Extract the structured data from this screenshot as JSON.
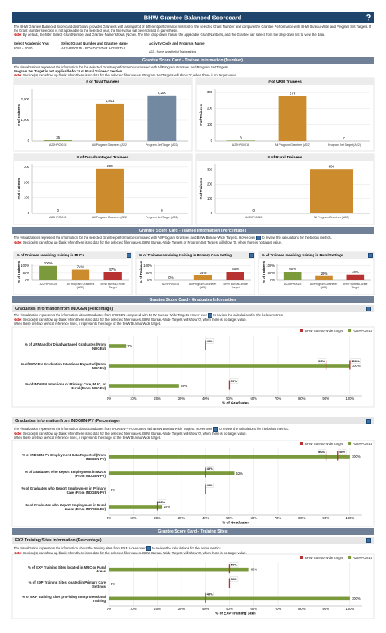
{
  "header": {
    "title": "BHW Grantee Balanced Scorecard",
    "help": "?"
  },
  "intro": {
    "text": "The BHW Grantee Balanced Scorecard dashboard provides Grantees with a snapshot of different performance metrics for the selected Grant Number and compare the Grantee Performance with BHW Bureau-Wide and Program Set Targets. If the Grant Number selection is not applicable to the selected year, the filter value will be enclosed in parenthesis.",
    "note_label": "Note:",
    "note": "By default, the filter 'Select Grant Number and Grantee Name' shows (None). The filter drop-down has all the applicable Grant Numbers, and the Grantee can select from the drop-down list to view the data."
  },
  "filters": [
    {
      "label": "Select Academic Year",
      "value": "2019 - 2020"
    },
    {
      "label": "Select Grant Number and Grantee Name",
      "value": "A22HP00015 - ROAD CATHE HOSPITAL"
    },
    {
      "label": "Activity Code and Program Name",
      "value": "A22 - Nurse Anesthetist Traineeships"
    }
  ],
  "bands": [
    "Grantee Score Card - Trainee Information (Number)",
    "Grantee Score Card - Trainee Information (Percentage)",
    "Grantee Score Card - Graduates Information",
    "Grantee Score Card - Training Sites"
  ],
  "subheadings": [
    "Graduates Information from INDGEN (Percentage)",
    "Graduates Information from INDGEN-PY (Percentage)",
    "EXP Training Sites Information (Percentage)"
  ],
  "descriptions": [
    {
      "text": "The visualizations represent the information for the selected Grantee performance compared with All Program Grantees and Program Set Targets.",
      "extra": "Program Set Target is not applicable for '# of Rural Trainees' Section.",
      "note_label": "Note:",
      "note": "Section(s) can show up blank when there is no data for the selected filter values. Program Set Targets will show '0', when there is no target value."
    },
    {
      "text": "The visualizations represent the information for the selected Grantee performance compared with All Program Grantees and BHW Bureau-Wide Targets. Hover over",
      "hover_after": "to review the calculations for the below metrics.",
      "note_label": "Note:",
      "note": "Section(s) can show up blank when there is no data for the selected filter values. BHW Bureau-Wide Targets or Program Set Targets will show '0', when there is no target value."
    },
    {
      "text": "The visualization represents the information about Graduates from INDGEN compared with BHW Bureau-Wide Targets. Hover over",
      "hover_after": "to review the calculations for the below metrics.",
      "note_label": "Note:",
      "note": "Section(s) can show up blank when there is no data for the selected filter values. BHW Bureau-Wide Targets will show '0', when there is no target value.",
      "range_note": "When there are two vertical reference lines, it represents the range of the BHW Bureau-Wide target."
    },
    {
      "text": "The visualization represents the information about Graduates from INDGEN-PY compared with BHW Bureau-Wide Targets. Hover over",
      "hover_after": "to review the calculations for the below metrics.",
      "note_label": "Note:",
      "note": "Section(s) can show up blank when there is no data for the selected filter values. BHW Bureau-Wide Targets will show '0', when there is no target value.",
      "range_note": "When there are two vertical reference lines, it represents the range of the BHW Bureau-Wide target."
    },
    {
      "text": "The visualization represents the information about the training sites from EXP. Hover over",
      "hover_after": "to review the calculations for the below metrics.",
      "note_label": "Note:",
      "note": "Section(s) can show up blank when there is no data for the selected filter values. BHW Bureau-Wide Targets will show '0', when there is no target value."
    }
  ],
  "chart_data": [
    {
      "type": "bar",
      "title": "# of Total Trainees",
      "y_label": "# of Trainees",
      "categories": [
        "A22HP00015",
        "All Program Grantees (A22)",
        "Program Set Target (A22)"
      ],
      "values": [
        35,
        1811,
        2200
      ],
      "value_labels": [
        "35",
        "1,811",
        "2,200"
      ],
      "colors": [
        "#7a9a3c",
        "#cc8b2c",
        "#7389a1"
      ],
      "ylim": [
        0,
        2500
      ],
      "yticks": [
        0,
        {
          "value": 1000,
          "label": "1,000"
        },
        {
          "value": 2000,
          "label": "2,000"
        }
      ]
    },
    {
      "type": "bar",
      "title": "# of URM Trainees",
      "y_label": "# of Trainees",
      "categories": [
        "A22HP00015",
        "All Program Grantees (A22)",
        "Program Set Target (A22)"
      ],
      "values": [
        3,
        279,
        0
      ],
      "colors": [
        "#7a9a3c",
        "#cc8b2c",
        "#7389a1"
      ],
      "ylim": [
        0,
        320
      ],
      "yticks": [
        0,
        100,
        200,
        300
      ]
    },
    {
      "type": "bar",
      "title": "# of Disadvantaged Trainees",
      "y_label": "# of Trainees",
      "categories": [
        "A22HP00015",
        "All Program Grantees (A22)",
        "Program Set Target (A22)"
      ],
      "values": [
        0,
        290,
        0
      ],
      "colors": [
        "#7a9a3c",
        "#cc8b2c",
        "#7389a1"
      ],
      "ylim": [
        0,
        320
      ],
      "yticks": [
        0,
        100,
        200,
        300
      ]
    },
    {
      "type": "bar",
      "title": "# of Rural Trainees",
      "y_label": "# of Trainees",
      "categories": [
        "A22HP00015",
        "All Program Grantees (A22)"
      ],
      "values": [
        0,
        306
      ],
      "colors": [
        "#7a9a3c",
        "#cc8b2c"
      ],
      "ylim": [
        0,
        340
      ],
      "yticks": [
        0,
        100,
        200,
        300
      ]
    },
    {
      "type": "bar",
      "title": "% of Trainees receiving training in MUCs",
      "y_label": "% of Trainees",
      "info": true,
      "categories": [
        "A22HP00015",
        "All Program Grantees (A22)",
        "BHW Bureau-Wide Target"
      ],
      "values": [
        100,
        74,
        57
      ],
      "value_labels": [
        "100%",
        "74%",
        "57%"
      ],
      "colors": [
        "#7a9a3c",
        "#cc8b2c",
        "#b83232"
      ],
      "ylim": [
        0,
        110
      ],
      "yticks": [
        {
          "value": 0,
          "label": "0%"
        },
        {
          "value": 50,
          "label": "50%"
        },
        {
          "value": 100,
          "label": "100%"
        }
      ]
    },
    {
      "type": "bar",
      "title": "% of Trainees receiving training in Primary Care Setting",
      "y_label": "% of Trainees",
      "info": true,
      "categories": [
        "A22HP00015",
        "All Program Grantees (A22)",
        "BHW Bureau-Wide Target"
      ],
      "values": [
        0,
        34,
        60
      ],
      "value_labels": [
        "0%",
        "34%",
        "60%"
      ],
      "colors": [
        "#7a9a3c",
        "#cc8b2c",
        "#b83232"
      ],
      "ylim": [
        0,
        110
      ],
      "yticks": [
        {
          "value": 0,
          "label": "0%"
        },
        {
          "value": 50,
          "label": "50%"
        },
        {
          "value": 100,
          "label": "100%"
        }
      ]
    },
    {
      "type": "bar",
      "title": "% of Trainees receiving training in Rural Settings",
      "y_label": "% of Trainees",
      "info": true,
      "categories": [
        "A22HP00015",
        "All Program Grantees (A22)",
        "BHW Bureau-Wide Target"
      ],
      "values": [
        60,
        29,
        40
      ],
      "value_labels": [
        "60%",
        "29%",
        "40%"
      ],
      "colors": [
        "#7a9a3c",
        "#cc8b2c",
        "#b83232"
      ],
      "ylim": [
        0,
        110
      ],
      "yticks": [
        {
          "value": 0,
          "label": "0%"
        },
        {
          "value": 50,
          "label": "50%"
        },
        {
          "value": 100,
          "label": "100%"
        }
      ]
    },
    {
      "type": "hbar",
      "x_label": "% of Graduates",
      "categories": [
        "% of URM and/or Disadvantaged Graduates (From INDGEN)",
        "% of INDGEN Graduation Intentions Reported (From INDGEN)",
        "% of INDGEN Intentions of Primary Care, MUC, or Rural (From INDGEN)"
      ],
      "series": [
        {
          "name": "BHW Bureau-Wide Target",
          "color": "#b83232",
          "values": [
            [
              40
            ],
            [
              90,
              100
            ],
            [
              50
            ]
          ],
          "value_labels": [
            [
              "40%"
            ],
            [
              "90%",
              "100%"
            ],
            [
              "50%"
            ]
          ]
        },
        {
          "name": "A22HP00015",
          "color": "#7a9a3c",
          "values": [
            7,
            100,
            29
          ],
          "value_labels": [
            "7%",
            "100%",
            "29%"
          ]
        }
      ],
      "xlim": [
        0,
        105
      ],
      "xticks": [
        {
          "value": 0,
          "label": "0%"
        },
        {
          "value": 10,
          "label": "10%"
        },
        {
          "value": 20,
          "label": "20%"
        },
        {
          "value": 30,
          "label": "30%"
        },
        {
          "value": 40,
          "label": "40%"
        },
        {
          "value": 50,
          "label": "50%"
        },
        {
          "value": 60,
          "label": "60%"
        },
        {
          "value": 70,
          "label": "70%"
        },
        {
          "value": 80,
          "label": "80%"
        },
        {
          "value": 90,
          "label": "90%"
        },
        {
          "value": 100,
          "label": "100%"
        }
      ]
    },
    {
      "type": "hbar",
      "x_label": "% of Graduates",
      "categories": [
        "% of INDGEN-PY Employment Data Reported (From INDGEN-PY)",
        "% of Graduates who Report Employment in MUCs (From INDGEN-PY)",
        "% of Graduates who Report Employment in Primary Care (From INDGEN-PY)",
        "% of Graduates who Report Employment in Rural Areas (From INDGEN-PY)"
      ],
      "series": [
        {
          "name": "BHW Bureau-Wide Target",
          "color": "#b83232",
          "values": [
            [
              90,
              95
            ],
            [
              40
            ],
            [
              40
            ],
            [
              20
            ]
          ],
          "value_labels": [
            [
              "90%",
              "95%"
            ],
            [
              "40%"
            ],
            [
              "40%"
            ],
            [
              "20%"
            ]
          ]
        },
        {
          "name": "A22HP00015",
          "color": "#7a9a3c",
          "values": [
            100,
            52,
            0,
            22
          ],
          "value_labels": [
            "100%",
            "52%",
            "0%",
            "22%"
          ]
        }
      ],
      "xlim": [
        0,
        105
      ],
      "xticks": [
        {
          "value": 0,
          "label": "0%"
        },
        {
          "value": 10,
          "label": "10%"
        },
        {
          "value": 20,
          "label": "20%"
        },
        {
          "value": 30,
          "label": "30%"
        },
        {
          "value": 40,
          "label": "40%"
        },
        {
          "value": 50,
          "label": "50%"
        },
        {
          "value": 60,
          "label": "60%"
        },
        {
          "value": 70,
          "label": "70%"
        },
        {
          "value": 80,
          "label": "80%"
        },
        {
          "value": 90,
          "label": "90%"
        },
        {
          "value": 100,
          "label": "100%"
        }
      ]
    },
    {
      "type": "hbar",
      "x_label": "% of EXP Training Sites",
      "categories": [
        "% of EXP Training Sites located in MUC or Rural Areas",
        "% of EXP Training Sites located in Primary Care Settings",
        "% of EXP Training Sites providing Interprofessional Training"
      ],
      "series": [
        {
          "name": "BHW Bureau-Wide Target",
          "color": "#b83232",
          "values": [
            [
              50
            ],
            [
              50
            ],
            [
              40
            ]
          ],
          "value_labels": [
            [
              "50%"
            ],
            [
              "50%"
            ],
            [
              "40%"
            ]
          ]
        },
        {
          "name": "A22HP00015",
          "color": "#7a9a3c",
          "values": [
            58,
            0,
            100
          ],
          "value_labels": [
            "58%",
            "0%",
            "100%"
          ]
        }
      ],
      "xlim": [
        0,
        105
      ],
      "xticks": [
        {
          "value": 0,
          "label": "0%"
        },
        {
          "value": 10,
          "label": "10%"
        },
        {
          "value": 20,
          "label": "20%"
        },
        {
          "value": 30,
          "label": "30%"
        },
        {
          "value": 40,
          "label": "40%"
        },
        {
          "value": 50,
          "label": "50%"
        },
        {
          "value": 60,
          "label": "60%"
        },
        {
          "value": 70,
          "label": "70%"
        },
        {
          "value": 80,
          "label": "80%"
        },
        {
          "value": 90,
          "label": "90%"
        },
        {
          "value": 100,
          "label": "100%"
        }
      ]
    }
  ]
}
